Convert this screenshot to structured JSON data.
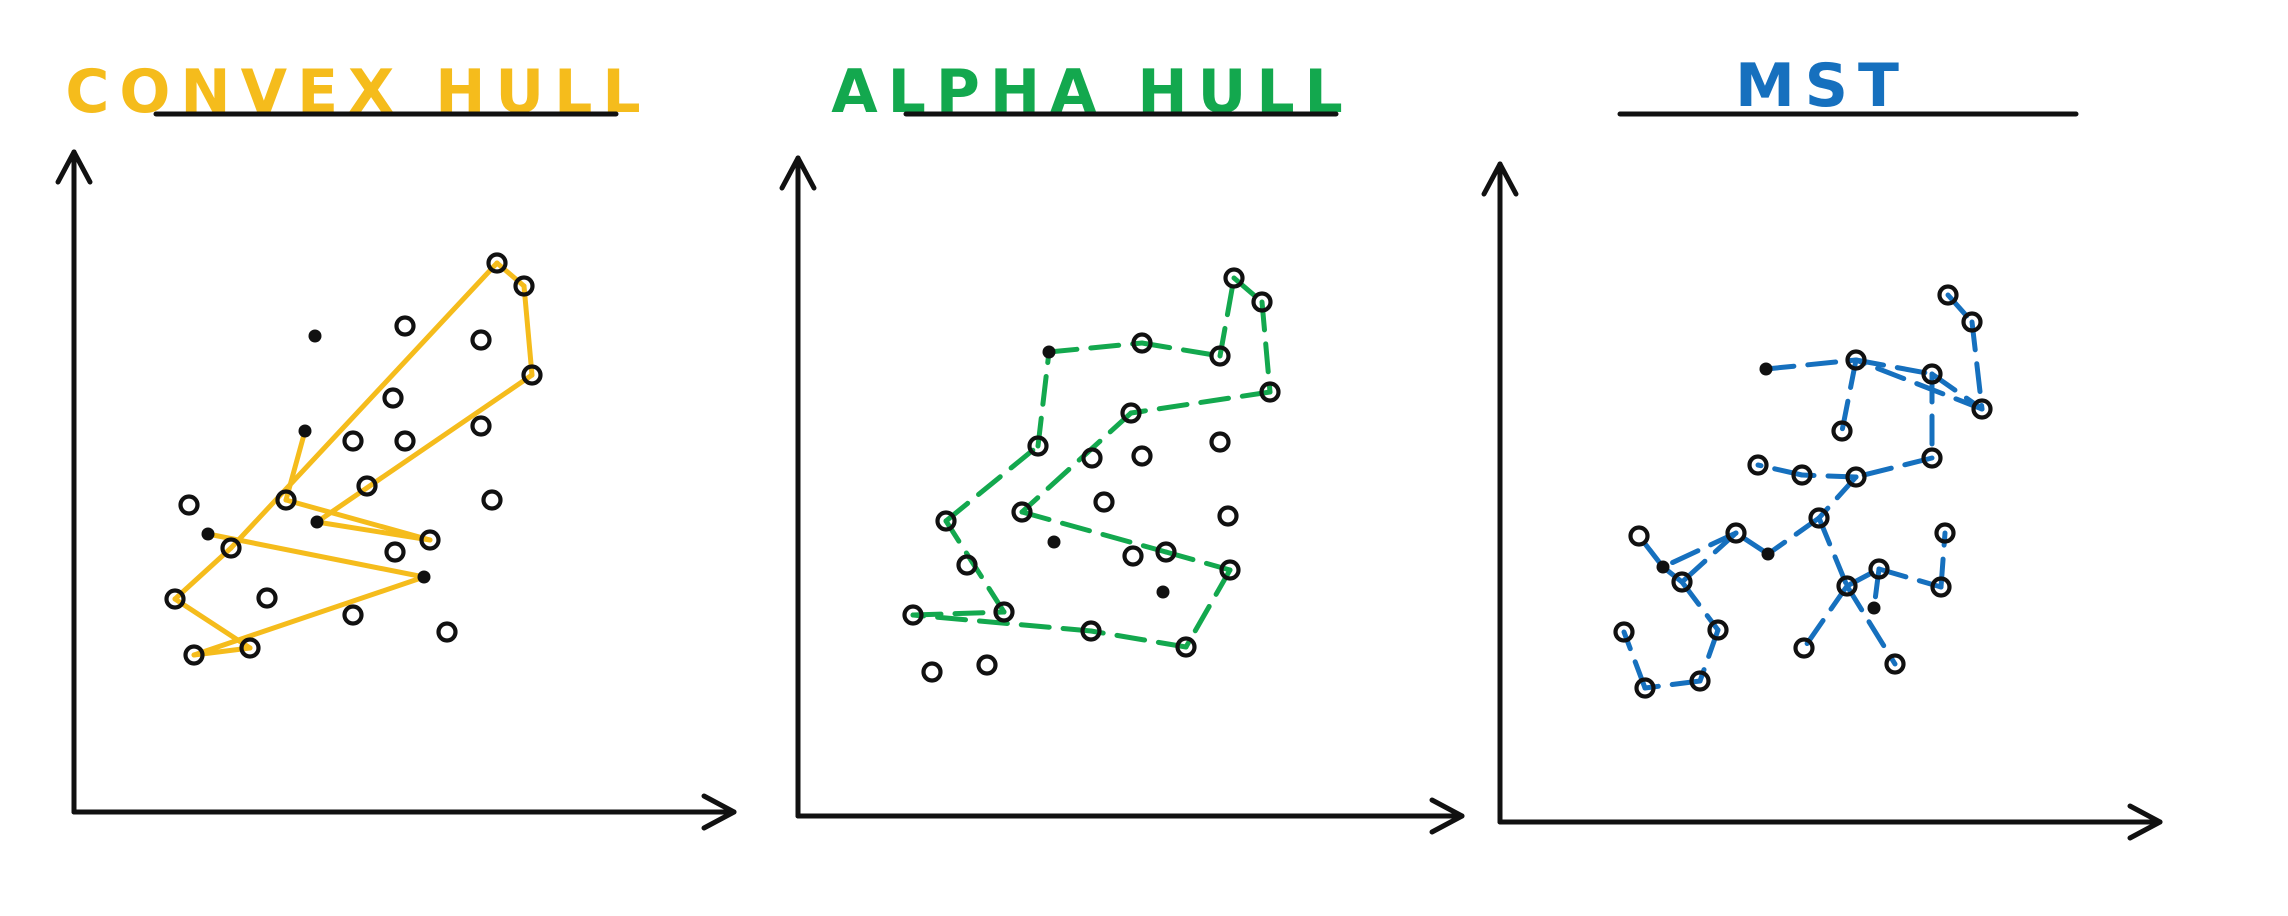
{
  "colors": {
    "ink": "#111111",
    "convex": "#F5BC1C",
    "alpha": "#13A84E",
    "mst": "#1670BE"
  },
  "panels": [
    {
      "key": "convex",
      "title": "CONVEX HULL",
      "color": "#F5BC1C",
      "kind": "hull",
      "line_style": "solid"
    },
    {
      "key": "alpha",
      "title": "ALPHA HULL",
      "color": "#13A84E",
      "kind": "hull",
      "line_style": "dashed"
    },
    {
      "key": "mst",
      "title": "MST",
      "color": "#1670BE",
      "kind": "tree",
      "line_style": "dashed"
    }
  ]
}
